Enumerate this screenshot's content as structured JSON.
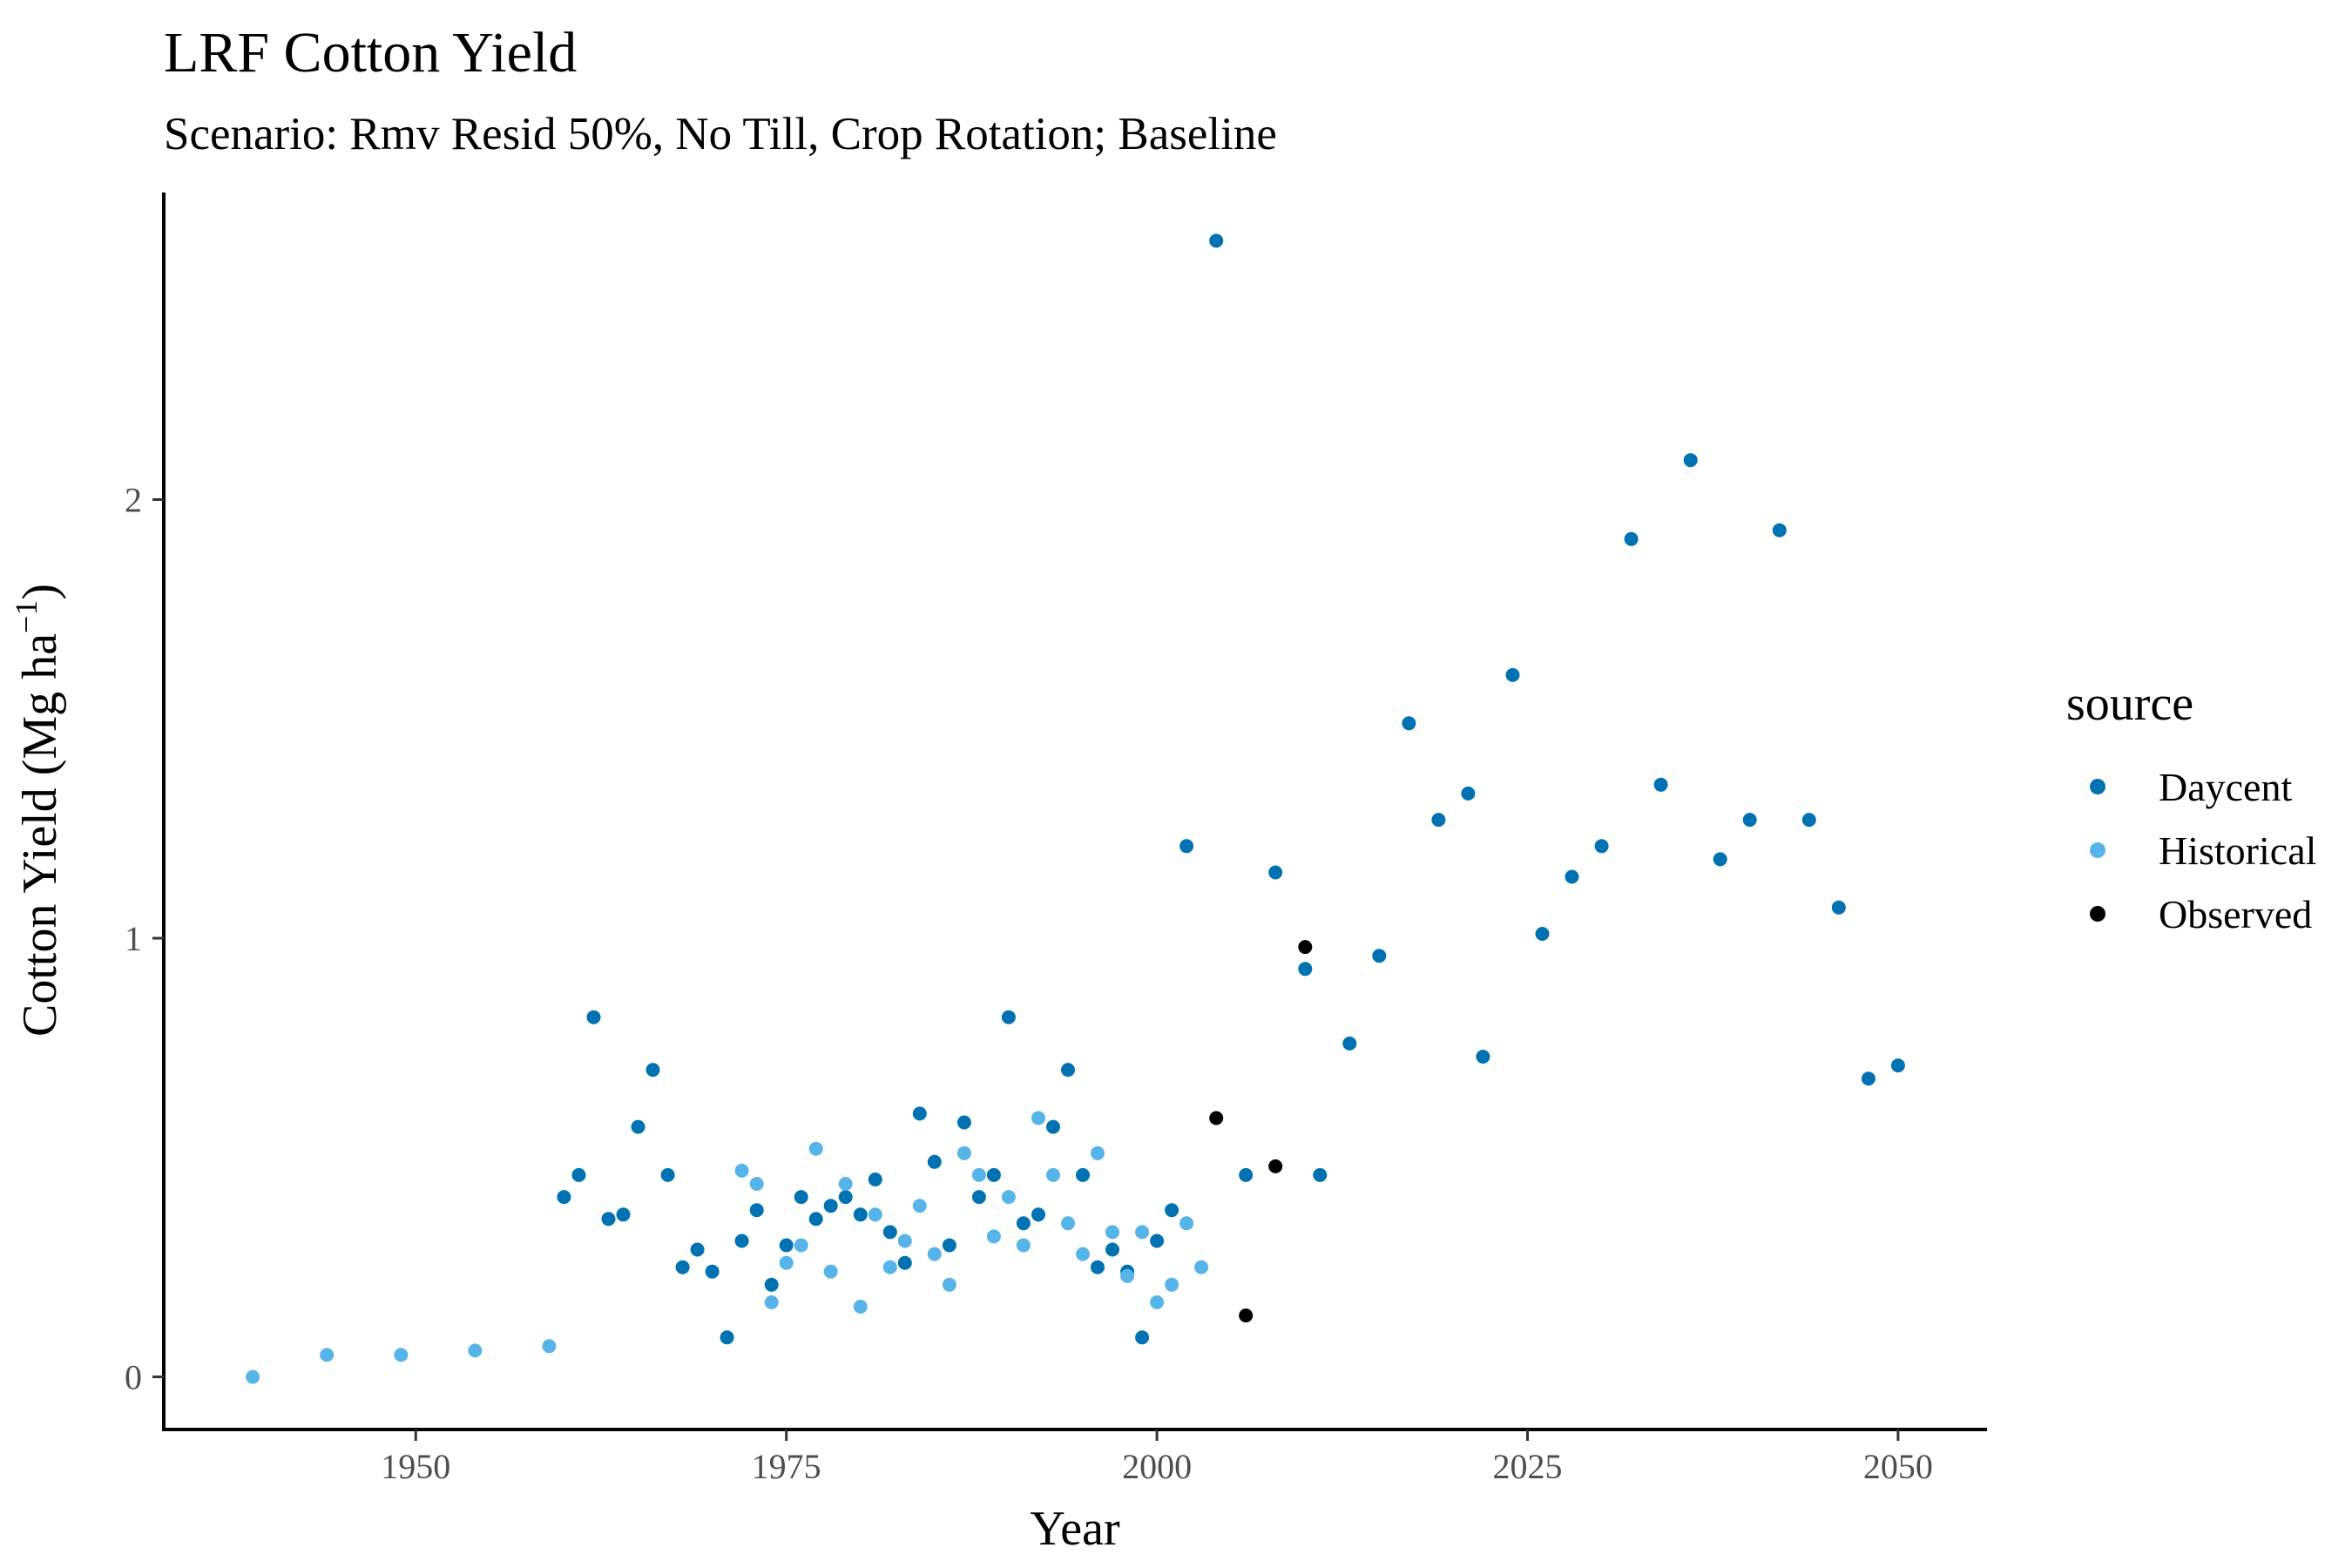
{
  "chart_data": {
    "type": "scatter",
    "title": "LRF Cotton Yield",
    "subtitle": "Scenario: Rmv Resid 50%, No Till, Crop Rotation; Baseline",
    "xlabel": "Year",
    "ylabel_main": "Cotton Yield (Mg ha",
    "ylabel_sup": "−1",
    "ylabel_close": ")",
    "xlim": [
      1933,
      2056
    ],
    "ylim": [
      -0.12,
      2.7
    ],
    "x_ticks": [
      1950,
      1975,
      2000,
      2025,
      2050
    ],
    "x_tick_labels": [
      "1950",
      "1975",
      "2000",
      "2025",
      "2050"
    ],
    "y_ticks": [
      0,
      1,
      2
    ],
    "y_tick_labels": [
      "0",
      "1",
      "2"
    ],
    "grid": false,
    "legend_title": "source",
    "legend_position": "right",
    "series": [
      {
        "name": "Daycent",
        "color": "#0072b2",
        "x": [
          1960,
          1961,
          1962,
          1963,
          1964,
          1965,
          1966,
          1967,
          1968,
          1969,
          1970,
          1971,
          1972,
          1973,
          1974,
          1975,
          1976,
          1977,
          1978,
          1979,
          1980,
          1981,
          1982,
          1983,
          1984,
          1985,
          1986,
          1987,
          1988,
          1989,
          1990,
          1991,
          1992,
          1993,
          1994,
          1995,
          1996,
          1997,
          1998,
          1999,
          2000,
          2001,
          2002,
          2004,
          2006,
          2008,
          2010,
          2011,
          2013,
          2015,
          2017,
          2019,
          2021,
          2022,
          2024,
          2026,
          2028,
          2030,
          2032,
          2034,
          2036,
          2038,
          2040,
          2042,
          2044,
          2046,
          2048,
          2050
        ],
        "y": [
          0.41,
          0.46,
          0.82,
          0.36,
          0.37,
          0.57,
          0.7,
          0.46,
          0.25,
          0.29,
          0.24,
          0.09,
          0.31,
          0.38,
          0.21,
          0.3,
          0.41,
          0.36,
          0.39,
          0.41,
          0.37,
          0.45,
          0.33,
          0.26,
          0.6,
          0.49,
          0.3,
          0.58,
          0.41,
          0.46,
          0.82,
          0.35,
          0.37,
          0.57,
          0.7,
          0.46,
          0.25,
          0.29,
          0.24,
          0.09,
          0.31,
          0.38,
          1.21,
          2.59,
          0.46,
          1.15,
          0.93,
          0.46,
          0.76,
          0.96,
          1.49,
          1.27,
          1.33,
          0.73,
          1.6,
          1.01,
          1.14,
          1.21,
          1.91,
          1.35,
          2.09,
          1.18,
          1.27,
          1.93,
          1.27,
          1.07,
          0.68,
          0.71
        ]
      },
      {
        "name": "Historical",
        "color": "#56b4e9",
        "x": [
          1939,
          1944,
          1949,
          1954,
          1959,
          1972,
          1973,
          1974,
          1975,
          1976,
          1977,
          1978,
          1979,
          1980,
          1981,
          1982,
          1983,
          1984,
          1985,
          1986,
          1987,
          1988,
          1989,
          1990,
          1991,
          1992,
          1993,
          1994,
          1995,
          1996,
          1997,
          1998,
          1999,
          2000,
          2001,
          2002,
          2003
        ],
        "y": [
          0.0,
          0.05,
          0.05,
          0.06,
          0.07,
          0.47,
          0.44,
          0.17,
          0.26,
          0.3,
          0.52,
          0.24,
          0.44,
          0.16,
          0.37,
          0.25,
          0.31,
          0.39,
          0.28,
          0.21,
          0.51,
          0.46,
          0.32,
          0.41,
          0.3,
          0.59,
          0.46,
          0.35,
          0.28,
          0.51,
          0.33,
          0.23,
          0.33,
          0.17,
          0.21,
          0.35,
          0.25
        ]
      },
      {
        "name": "Observed",
        "color": "#000000",
        "x": [
          2004,
          2006,
          2008,
          2010
        ],
        "y": [
          0.59,
          0.14,
          0.48,
          0.98
        ]
      }
    ]
  }
}
